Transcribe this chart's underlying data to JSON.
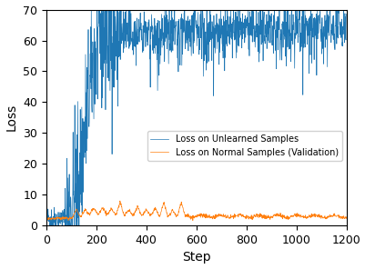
{
  "title": "",
  "xlabel": "Step",
  "ylabel": "Loss",
  "xlim": [
    0,
    1200
  ],
  "ylim": [
    0,
    70
  ],
  "xticks": [
    0,
    200,
    400,
    600,
    800,
    1000,
    1200
  ],
  "yticks": [
    0,
    10,
    20,
    30,
    40,
    50,
    60,
    70
  ],
  "legend_labels": [
    "Loss on Unlearned Samples",
    "Loss on Normal Samples (Validation)"
  ],
  "blue_color": "#1f77b4",
  "orange_color": "#ff7f0e",
  "figsize": [
    4.02,
    2.96
  ],
  "dpi": 100,
  "seed": 42
}
